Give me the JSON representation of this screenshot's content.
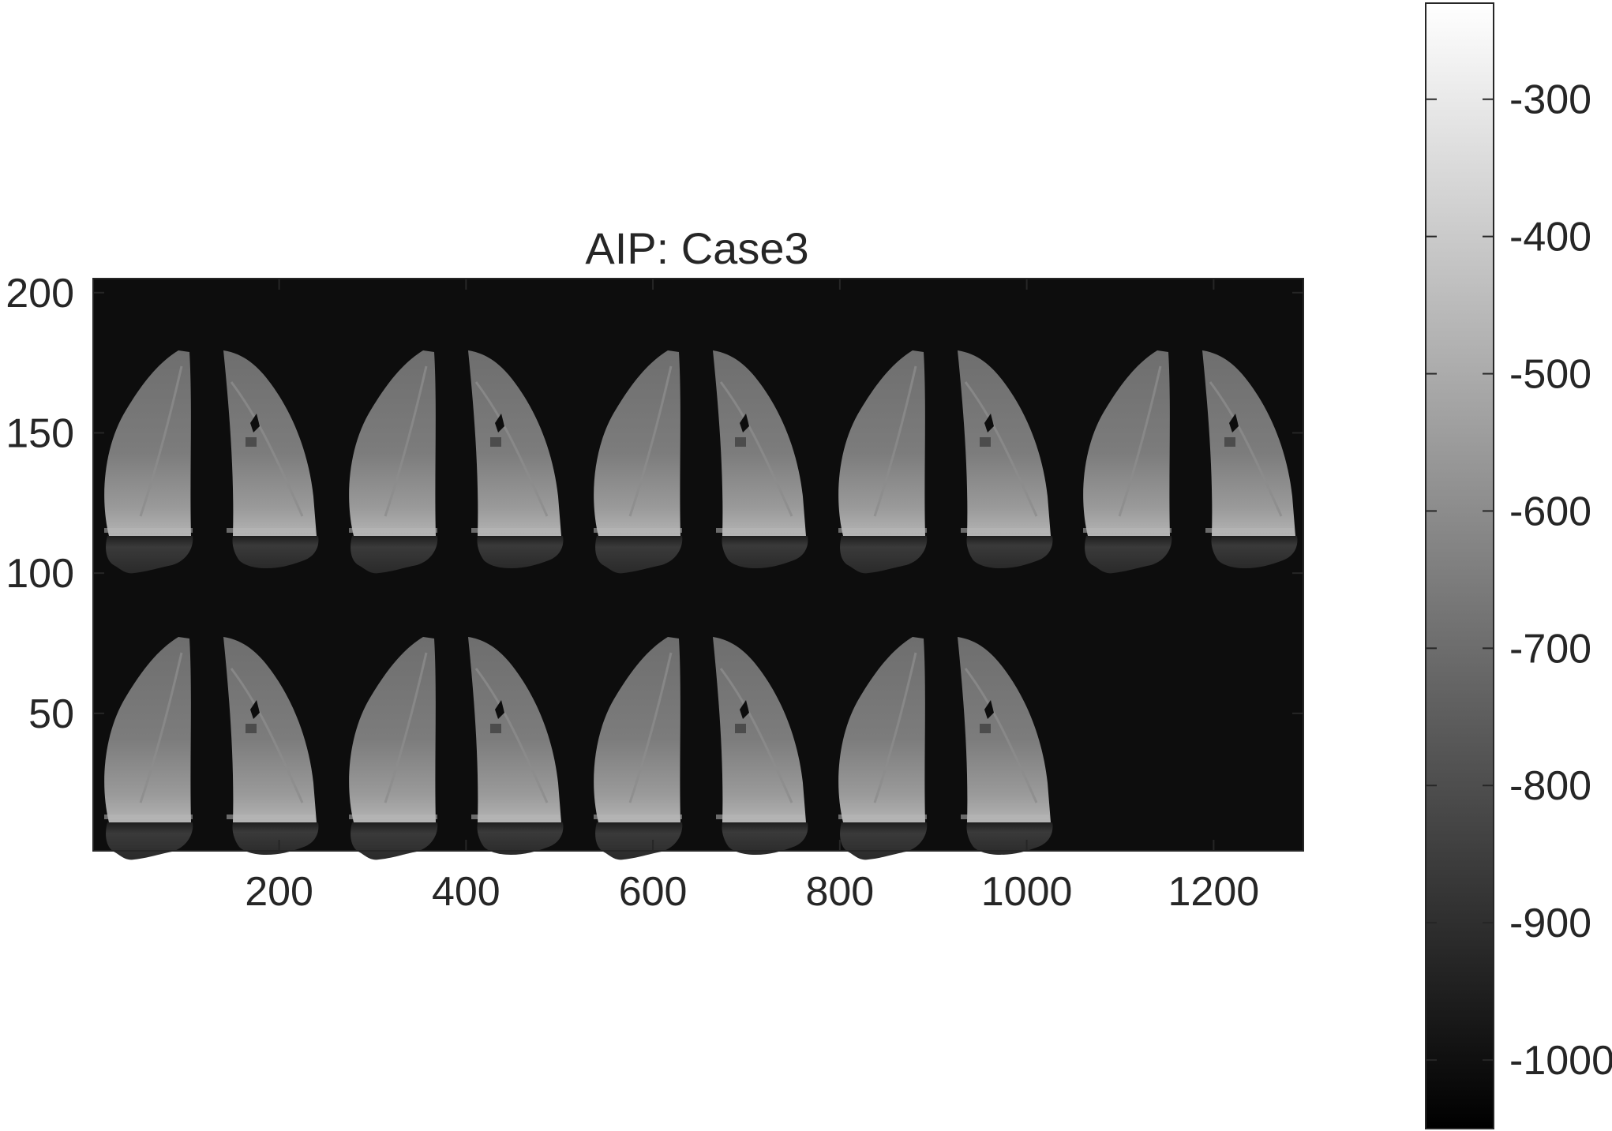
{
  "figure": {
    "title": "AIP: Case3",
    "image": {
      "colormap": "gray",
      "background": "#0d0d0d",
      "layout": "mosaic of lung slices",
      "rows": [
        {
          "slices": 10,
          "orientations": [
            "left",
            "right",
            "left",
            "right",
            "left",
            "right",
            "left",
            "right",
            "left",
            "right"
          ]
        },
        {
          "slices": 8,
          "orientations": [
            "left",
            "right",
            "left",
            "right",
            "left",
            "right",
            "left",
            "right"
          ]
        }
      ]
    },
    "x_axis": {
      "range": [
        1,
        1296
      ],
      "ticks": [
        200,
        400,
        600,
        800,
        1000,
        1200
      ],
      "tick_labels": [
        "200",
        "400",
        "600",
        "800",
        "1000",
        "1200"
      ]
    },
    "y_axis": {
      "range": [
        1,
        205
      ],
      "direction": "normal",
      "ticks": [
        200,
        150,
        100,
        50
      ],
      "tick_labels": [
        "200",
        "150",
        "100",
        "50"
      ]
    },
    "colorbar": {
      "colormap": "gray",
      "range": [
        -1050,
        -230
      ],
      "ticks": [
        -300,
        -400,
        -500,
        -600,
        -700,
        -800,
        -900,
        -1000
      ],
      "tick_labels": [
        "-300",
        "-400",
        "-500",
        "-600",
        "-700",
        "-800",
        "-900",
        "-1000"
      ]
    }
  }
}
